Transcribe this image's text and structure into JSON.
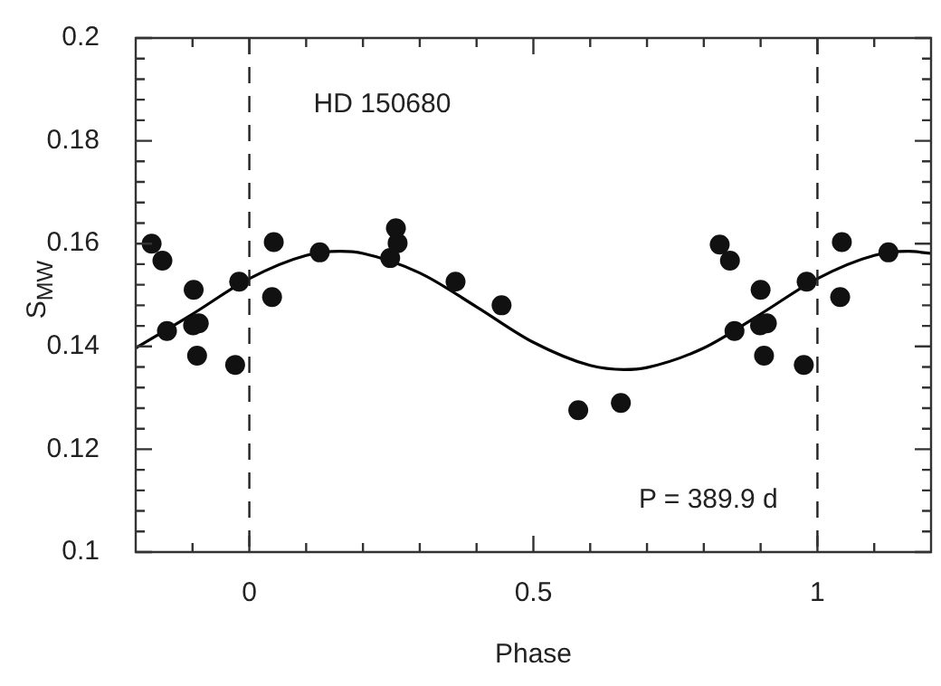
{
  "chart_data": {
    "type": "scatter",
    "xlabel": "Phase",
    "ylabel": "S$_{MW}$",
    "annotations": [
      "HD 150680",
      "P = 389.9 d"
    ],
    "xlim": [
      -0.2,
      1.2
    ],
    "ylim": [
      0.1,
      0.2
    ],
    "xticks": [
      {
        "value": -0.1,
        "label": null
      },
      0,
      {
        "value": 0.1,
        "label": null
      },
      {
        "value": 0.2,
        "label": null
      },
      {
        "value": 0.3,
        "label": null
      },
      {
        "value": 0.4,
        "label": null
      },
      0.5,
      {
        "value": 0.6,
        "label": null
      },
      {
        "value": 0.7,
        "label": null
      },
      {
        "value": 0.8,
        "label": null
      },
      {
        "value": 0.9,
        "label": null
      },
      1,
      {
        "value": 1.1,
        "label": null
      }
    ],
    "yticks": [
      0.1,
      {
        "value": 0.104,
        "label": null
      },
      {
        "value": 0.108,
        "label": null
      },
      {
        "value": 0.112,
        "label": null
      },
      {
        "value": 0.116,
        "label": null
      },
      0.12,
      {
        "value": 0.124,
        "label": null
      },
      {
        "value": 0.128,
        "label": null
      },
      {
        "value": 0.132,
        "label": null
      },
      {
        "value": 0.136,
        "label": null
      },
      0.14,
      {
        "value": 0.144,
        "label": null
      },
      {
        "value": 0.148,
        "label": null
      },
      {
        "value": 0.152,
        "label": null
      },
      {
        "value": 0.156,
        "label": null
      },
      0.16,
      {
        "value": 0.164,
        "label": null
      },
      {
        "value": 0.168,
        "label": null
      },
      {
        "value": 0.172,
        "label": null
      },
      {
        "value": 0.176,
        "label": null
      },
      0.18,
      {
        "value": 0.184,
        "label": null
      },
      {
        "value": 0.188,
        "label": null
      },
      {
        "value": 0.192,
        "label": null
      },
      {
        "value": 0.196,
        "label": null
      },
      0.2
    ],
    "ref_lines": [
      {
        "axis": "x",
        "value": 0,
        "line_style": "dashed",
        "color": "#222222"
      },
      {
        "axis": "x",
        "value": 1,
        "line_style": "dashed",
        "color": "#222222"
      }
    ],
    "series": [
      {
        "marker": "circle",
        "color": "#111111",
        "x": [
          -0.172,
          -0.153,
          -0.145,
          -0.098,
          -0.099,
          -0.089,
          -0.092,
          -0.025,
          -0.018,
          0.043,
          0.04,
          0.124,
          0.248,
          0.258,
          0.261,
          0.363,
          0.444,
          0.579,
          0.654,
          0.828,
          0.846,
          0.854,
          0.9,
          0.899,
          0.911,
          0.906,
          0.976,
          0.981,
          1.043,
          1.04,
          1.125
        ],
        "values": [
          0.16,
          0.1567,
          0.143,
          0.151,
          0.1441,
          0.1445,
          0.1382,
          0.1364,
          0.1526,
          0.1603,
          0.1496,
          0.1583,
          0.1572,
          0.163,
          0.1601,
          0.1526,
          0.148,
          0.1276,
          0.129,
          0.1598,
          0.1567,
          0.143,
          0.151,
          0.1441,
          0.1445,
          0.1382,
          0.1364,
          0.1526,
          0.1603,
          0.1496,
          0.1583
        ]
      },
      {
        "type": "line",
        "marker": "none",
        "line_style": "solid",
        "color": "#000000",
        "x": [
          -0.2,
          -0.1,
          0,
          0.1,
          0.16,
          0.2,
          0.3,
          0.4,
          0.5,
          0.6,
          0.66,
          0.7,
          0.8,
          0.9,
          1,
          1.1,
          1.16,
          1.2
        ],
        "values": [
          0.1397,
          0.1463,
          0.1532,
          0.1577,
          0.1585,
          0.1581,
          0.1543,
          0.1477,
          0.1408,
          0.1363,
          0.1355,
          0.1359,
          0.1397,
          0.1463,
          0.1532,
          0.1577,
          0.1585,
          0.1581
        ]
      }
    ]
  }
}
